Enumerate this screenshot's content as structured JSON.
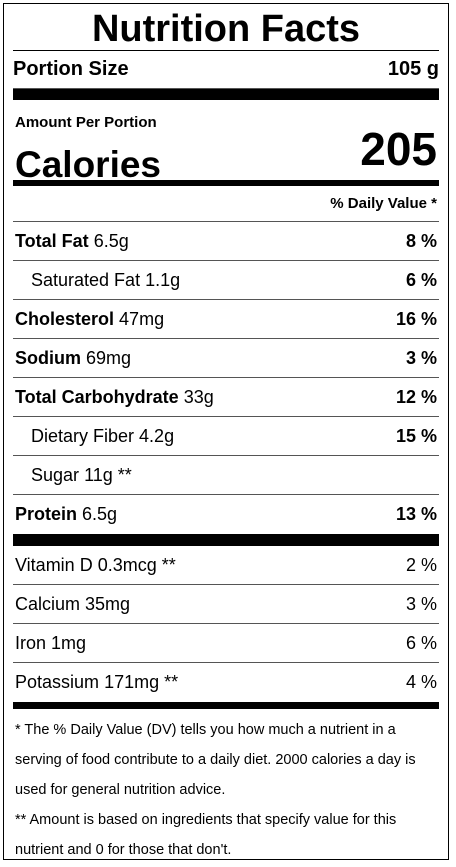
{
  "title": "Nutrition Facts",
  "portion": {
    "label": "Portion Size",
    "value": "105 g"
  },
  "amount_per_portion": "Amount Per Portion",
  "calories": {
    "label": "Calories",
    "value": "205"
  },
  "daily_value_header": "% Daily Value *",
  "nutrients": [
    {
      "name": "Total Fat",
      "amount": "6.5g",
      "dv": "8 %",
      "bold": true
    },
    {
      "name": "Saturated Fat",
      "amount": "1.1g",
      "dv": "6 %",
      "bold": false
    },
    {
      "name": "Cholesterol",
      "amount": "47mg",
      "dv": "16 %",
      "bold": true
    },
    {
      "name": "Sodium",
      "amount": "69mg",
      "dv": "3 %",
      "bold": true
    },
    {
      "name": "Total Carbohydrate",
      "amount": "33g",
      "dv": "12 %",
      "bold": true
    },
    {
      "name": "Dietary Fiber",
      "amount": "4.2g",
      "dv": "15 %",
      "bold": false
    },
    {
      "name": "Sugar",
      "amount": "11g **",
      "dv": "",
      "bold": false
    },
    {
      "name": "Protein",
      "amount": "6.5g",
      "dv": "13 %",
      "bold": true
    }
  ],
  "micronutrients": [
    {
      "name": "Vitamin D",
      "amount": "0.3mcg **",
      "dv": "2 %"
    },
    {
      "name": "Calcium",
      "amount": "35mg",
      "dv": "3 %"
    },
    {
      "name": "Iron",
      "amount": "1mg",
      "dv": "6 %"
    },
    {
      "name": "Potassium",
      "amount": "171mg **",
      "dv": "4 %"
    }
  ],
  "footnotes": [
    "* The % Daily Value (DV) tells you how much a nutrient in a serving of food contribute to a daily diet. 2000 calories a day is used for general nutrition advice.",
    "** Amount is based on ingredients that specify value for this nutrient and 0 for those that don't."
  ]
}
